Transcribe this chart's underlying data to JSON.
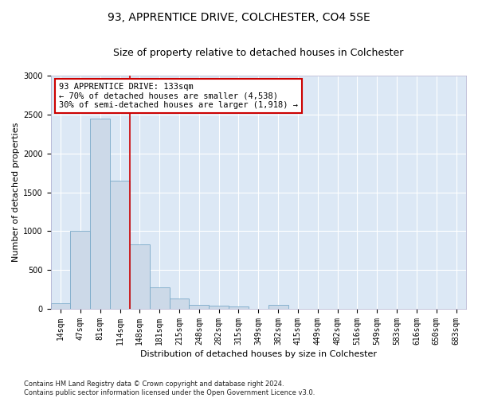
{
  "title1": "93, APPRENTICE DRIVE, COLCHESTER, CO4 5SE",
  "title2": "Size of property relative to detached houses in Colchester",
  "xlabel": "Distribution of detached houses by size in Colchester",
  "ylabel": "Number of detached properties",
  "footnote": "Contains HM Land Registry data © Crown copyright and database right 2024.\nContains public sector information licensed under the Open Government Licence v3.0.",
  "bin_labels": [
    "14sqm",
    "47sqm",
    "81sqm",
    "114sqm",
    "148sqm",
    "181sqm",
    "215sqm",
    "248sqm",
    "282sqm",
    "315sqm",
    "349sqm",
    "382sqm",
    "415sqm",
    "449sqm",
    "482sqm",
    "516sqm",
    "549sqm",
    "583sqm",
    "616sqm",
    "650sqm",
    "683sqm"
  ],
  "bar_values": [
    75,
    1000,
    2450,
    1650,
    830,
    280,
    130,
    55,
    40,
    30,
    0,
    50,
    0,
    0,
    0,
    0,
    0,
    0,
    0,
    0,
    0
  ],
  "bar_color": "#ccd9e8",
  "bar_edge_color": "#7aaac8",
  "vline_x": 3.5,
  "vline_color": "#cc0000",
  "annotation_text": "93 APPRENTICE DRIVE: 133sqm\n← 70% of detached houses are smaller (4,538)\n30% of semi-detached houses are larger (1,918) →",
  "annotation_box_color": "#ffffff",
  "annotation_box_edge": "#cc0000",
  "ylim": [
    0,
    3000
  ],
  "yticks": [
    0,
    500,
    1000,
    1500,
    2000,
    2500,
    3000
  ],
  "plot_bg_color": "#dce8f5",
  "fig_bg_color": "#ffffff",
  "title1_fontsize": 10,
  "title2_fontsize": 9,
  "xlabel_fontsize": 8,
  "ylabel_fontsize": 8,
  "tick_fontsize": 7,
  "annot_fontsize": 7.5,
  "footnote_fontsize": 6
}
